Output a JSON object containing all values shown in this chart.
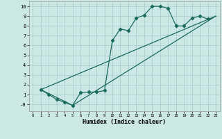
{
  "xlabel": "Humidex (Indice chaleur)",
  "bg_color": "#cce8e4",
  "grid_color": "#aacfcb",
  "line_color": "#1a6b5a",
  "xlim": [
    -0.5,
    23.5
  ],
  "ylim": [
    -0.7,
    10.5
  ],
  "xticks": [
    0,
    1,
    2,
    3,
    4,
    5,
    6,
    7,
    8,
    9,
    10,
    11,
    12,
    13,
    14,
    15,
    16,
    17,
    18,
    19,
    20,
    21,
    22,
    23
  ],
  "yticks": [
    0,
    1,
    2,
    3,
    4,
    5,
    6,
    7,
    8,
    9,
    10
  ],
  "ytick_labels": [
    "-0",
    "1",
    "2",
    "3",
    "4",
    "5",
    "6",
    "7",
    "8",
    "9",
    "10"
  ],
  "series1_x": [
    1,
    2,
    3,
    4,
    5,
    6,
    7,
    8,
    9,
    10,
    11,
    12,
    13,
    14,
    15,
    16,
    17,
    18,
    19,
    20,
    21,
    22
  ],
  "series1_y": [
    1.5,
    1.0,
    0.5,
    0.2,
    -0.1,
    1.2,
    1.25,
    1.25,
    1.4,
    6.5,
    7.7,
    7.5,
    8.8,
    9.1,
    10.0,
    10.0,
    9.8,
    8.0,
    8.0,
    8.8,
    9.0,
    8.7
  ],
  "series2_x": [
    1,
    23
  ],
  "series2_y": [
    1.5,
    9.0
  ],
  "series3_x": [
    1,
    5,
    23
  ],
  "series3_y": [
    1.5,
    -0.1,
    9.0
  ]
}
